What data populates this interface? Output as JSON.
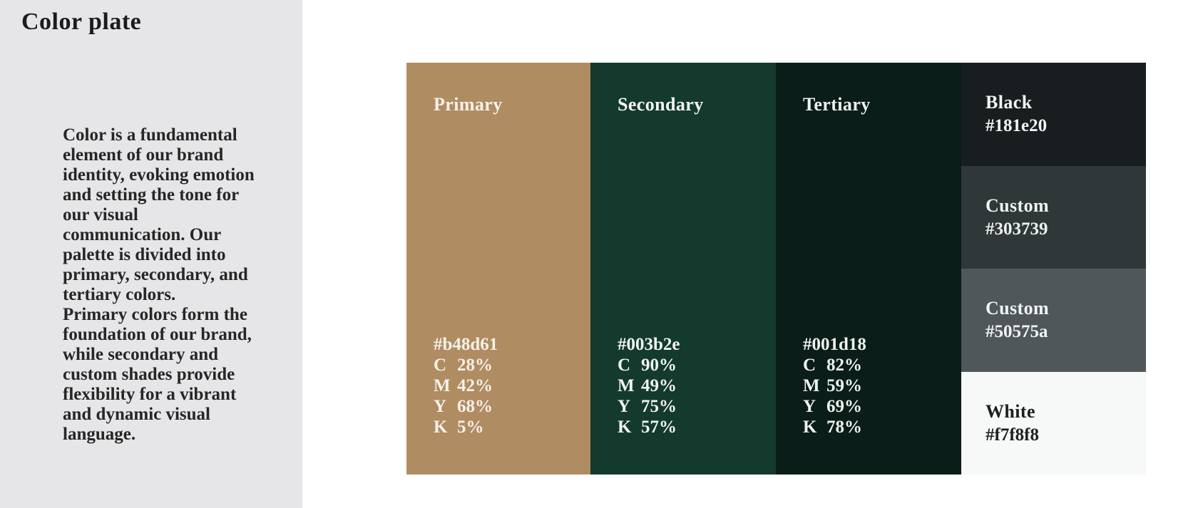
{
  "page": {
    "background": "#ffffff"
  },
  "sidebar": {
    "background": "#e6e6e8",
    "title": "Color plate",
    "paragraph": "Color is a fundamental element of our brand identity, evoking emotion and setting the tone for our visual communication. Our palette is divided into primary, secondary, and tertiary colors.\nPrimary colors form the foundation of our brand, while secondary and custom shades provide flexibility for a vibrant and dynamic visual language.",
    "text_color": "#262626"
  },
  "palette": {
    "columns": [
      {
        "label": "Primary",
        "hex": "#b48d61",
        "bg": "#b08c62",
        "fg": "#f6f1ea",
        "cmyk": [
          {
            "k": "C",
            "v": "28%"
          },
          {
            "k": "M",
            "v": "42%"
          },
          {
            "k": "Y",
            "v": "68%"
          },
          {
            "k": "K",
            "v": "5%"
          }
        ]
      },
      {
        "label": "Secondary",
        "hex": "#003b2e",
        "bg": "#133a2d",
        "fg": "#f2f4f2",
        "cmyk": [
          {
            "k": "C",
            "v": "90%"
          },
          {
            "k": "M",
            "v": "49%"
          },
          {
            "k": "Y",
            "v": "75%"
          },
          {
            "k": "K",
            "v": "57%"
          }
        ]
      },
      {
        "label": "Tertiary",
        "hex": "#001d18",
        "bg": "#0a1d18",
        "fg": "#eef2f0",
        "cmyk": [
          {
            "k": "C",
            "v": "82%"
          },
          {
            "k": "M",
            "v": "59%"
          },
          {
            "k": "Y",
            "v": "69%"
          },
          {
            "k": "K",
            "v": "78%"
          }
        ]
      }
    ],
    "stack": [
      {
        "label": "Black",
        "hex": "#181e20",
        "bg": "#181e20",
        "fg": "#f3f4f4"
      },
      {
        "label": "Custom",
        "hex": "#303739",
        "bg": "#303739",
        "fg": "#f0f1f1"
      },
      {
        "label": "Custom",
        "hex": "#50575a",
        "bg": "#50575a",
        "fg": "#f2f3f3"
      },
      {
        "label": "White",
        "hex": "#f7f8f8",
        "bg": "#f7f8f8",
        "fg": "#1d2023"
      }
    ]
  }
}
